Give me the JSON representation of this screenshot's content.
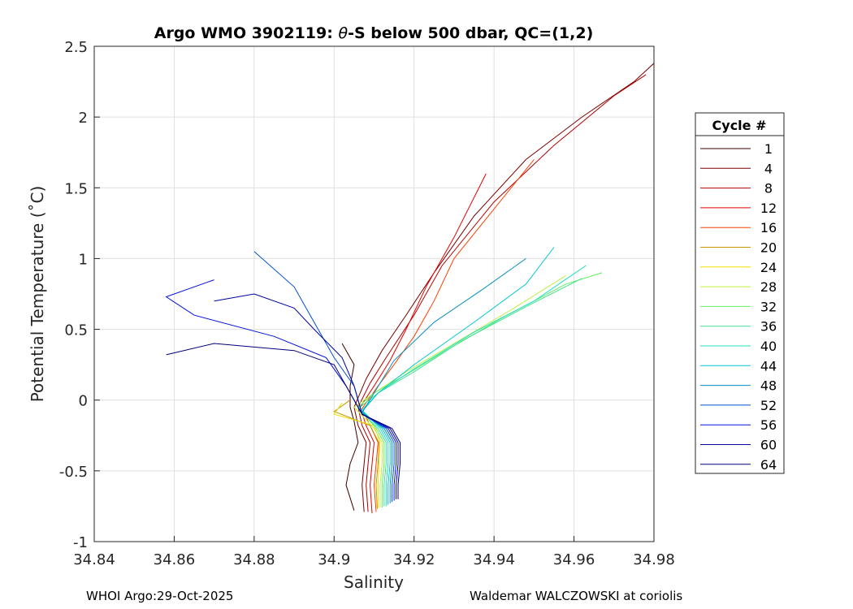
{
  "chart_data": {
    "type": "line",
    "title": "Argo WMO 3902119: θ-S below 500 dbar,  QC=(1,2)",
    "title_parts": {
      "prefix": "Argo WMO 3902119: ",
      "symbol": "θ",
      "suffix": "-S below 500 dbar,  QC=(1,2)"
    },
    "xlabel": "Salinity",
    "ylabel": "Potential Temperature (˚C)",
    "xlim": [
      34.84,
      34.98
    ],
    "ylim": [
      -1,
      2.5
    ],
    "xticks": [
      34.84,
      34.86,
      34.88,
      34.9,
      34.92,
      34.94,
      34.96,
      34.98
    ],
    "xtick_labels": [
      "34.84",
      "34.86",
      "34.88",
      "34.9",
      "34.92",
      "34.94",
      "34.96",
      "34.98"
    ],
    "yticks": [
      -1,
      -0.5,
      0,
      0.5,
      1,
      1.5,
      2,
      2.5
    ],
    "ytick_labels": [
      "-1",
      "-0.5",
      "0",
      "0.5",
      "1",
      "1.5",
      "2",
      "2.5"
    ],
    "grid": true,
    "legend": {
      "title": "Cycle #",
      "placement": "outside-right",
      "entries": [
        "1",
        "4",
        "8",
        "12",
        "16",
        "20",
        "24",
        "28",
        "32",
        "36",
        "40",
        "44",
        "48",
        "52",
        "56",
        "60",
        "64"
      ],
      "colors": [
        "#3a0000",
        "#7a0000",
        "#b30000",
        "#e80000",
        "#ff4000",
        "#c89600",
        "#f0e000",
        "#c0f040",
        "#60f060",
        "#40e090",
        "#20e0c0",
        "#00c8d0",
        "#0090c0",
        "#0050d0",
        "#0010e0",
        "#0000a0",
        "#000078"
      ]
    },
    "series": [
      {
        "name": "1",
        "color": "#3a0000",
        "points": [
          [
            34.905,
            -0.78
          ],
          [
            34.903,
            -0.6
          ],
          [
            34.904,
            -0.45
          ],
          [
            34.906,
            -0.3
          ],
          [
            34.905,
            -0.15
          ],
          [
            34.904,
            -0.05
          ],
          [
            34.904,
            0.1
          ],
          [
            34.905,
            0.25
          ],
          [
            34.902,
            0.4
          ]
        ]
      },
      {
        "name": "4",
        "color": "#7a0000",
        "points": [
          [
            34.9075,
            -0.79
          ],
          [
            34.907,
            -0.6
          ],
          [
            34.9075,
            -0.45
          ],
          [
            34.908,
            -0.3
          ],
          [
            34.906,
            -0.18
          ],
          [
            34.905,
            -0.05
          ],
          [
            34.908,
            0.15
          ],
          [
            34.912,
            0.35
          ],
          [
            34.918,
            0.6
          ],
          [
            34.925,
            0.9
          ],
          [
            34.935,
            1.3
          ],
          [
            34.948,
            1.7
          ],
          [
            34.962,
            2.0
          ],
          [
            34.975,
            2.25
          ],
          [
            34.98,
            2.38
          ]
        ]
      },
      {
        "name": "8",
        "color": "#b30000",
        "points": [
          [
            34.9085,
            -0.79
          ],
          [
            34.908,
            -0.6
          ],
          [
            34.9085,
            -0.45
          ],
          [
            34.909,
            -0.3
          ],
          [
            34.907,
            -0.18
          ],
          [
            34.906,
            -0.05
          ],
          [
            34.909,
            0.12
          ],
          [
            34.913,
            0.3
          ],
          [
            34.92,
            0.6
          ],
          [
            34.927,
            0.95
          ],
          [
            34.94,
            1.4
          ],
          [
            34.955,
            1.8
          ],
          [
            34.97,
            2.15
          ],
          [
            34.978,
            2.3
          ]
        ]
      },
      {
        "name": "12",
        "color": "#e80000",
        "points": [
          [
            34.9095,
            -0.8
          ],
          [
            34.909,
            -0.6
          ],
          [
            34.9095,
            -0.45
          ],
          [
            34.91,
            -0.3
          ],
          [
            34.908,
            -0.18
          ],
          [
            34.9065,
            -0.05
          ],
          [
            34.91,
            0.1
          ],
          [
            34.914,
            0.28
          ],
          [
            34.918,
            0.5
          ],
          [
            34.923,
            0.8
          ],
          [
            34.93,
            1.15
          ],
          [
            34.938,
            1.6
          ]
        ]
      },
      {
        "name": "16",
        "color": "#ff4000",
        "points": [
          [
            34.9105,
            -0.79
          ],
          [
            34.91,
            -0.6
          ],
          [
            34.9105,
            -0.45
          ],
          [
            34.911,
            -0.3
          ],
          [
            34.909,
            -0.18
          ],
          [
            34.907,
            -0.06
          ],
          [
            34.911,
            0.1
          ],
          [
            34.915,
            0.25
          ],
          [
            34.92,
            0.45
          ],
          [
            34.925,
            0.7
          ],
          [
            34.93,
            1.0
          ],
          [
            34.94,
            1.35
          ],
          [
            34.95,
            1.7
          ]
        ]
      },
      {
        "name": "20",
        "color": "#c89600",
        "points": [
          [
            34.9108,
            -0.77
          ],
          [
            34.9105,
            -0.6
          ],
          [
            34.911,
            -0.45
          ],
          [
            34.9112,
            -0.3
          ],
          [
            34.909,
            -0.18
          ],
          [
            34.9,
            -0.08
          ],
          [
            34.904,
            0.0
          ]
        ]
      },
      {
        "name": "24",
        "color": "#f0e000",
        "points": [
          [
            34.911,
            -0.76
          ],
          [
            34.911,
            -0.6
          ],
          [
            34.9112,
            -0.45
          ],
          [
            34.9115,
            -0.3
          ],
          [
            34.91,
            -0.18
          ],
          [
            34.9,
            -0.1
          ],
          [
            34.902,
            -0.02
          ]
        ]
      },
      {
        "name": "28",
        "color": "#c0f040",
        "points": [
          [
            34.9115,
            -0.76
          ],
          [
            34.9115,
            -0.6
          ],
          [
            34.912,
            -0.45
          ],
          [
            34.912,
            -0.3
          ],
          [
            34.91,
            -0.2
          ],
          [
            34.905,
            -0.05
          ],
          [
            34.91,
            0.05
          ],
          [
            34.918,
            0.2
          ],
          [
            34.93,
            0.4
          ],
          [
            34.945,
            0.65
          ],
          [
            34.958,
            0.88
          ]
        ]
      },
      {
        "name": "32",
        "color": "#60f060",
        "points": [
          [
            34.912,
            -0.76
          ],
          [
            34.912,
            -0.6
          ],
          [
            34.9125,
            -0.45
          ],
          [
            34.9125,
            -0.3
          ],
          [
            34.9105,
            -0.2
          ],
          [
            34.906,
            -0.05
          ],
          [
            34.91,
            0.05
          ],
          [
            34.918,
            0.18
          ],
          [
            34.928,
            0.35
          ],
          [
            34.942,
            0.58
          ],
          [
            34.958,
            0.82
          ],
          [
            34.967,
            0.9
          ]
        ]
      },
      {
        "name": "36",
        "color": "#40e090",
        "points": [
          [
            34.9125,
            -0.75
          ],
          [
            34.9125,
            -0.6
          ],
          [
            34.913,
            -0.45
          ],
          [
            34.913,
            -0.3
          ],
          [
            34.911,
            -0.2
          ],
          [
            34.906,
            -0.06
          ],
          [
            34.911,
            0.05
          ],
          [
            34.92,
            0.2
          ],
          [
            34.932,
            0.42
          ],
          [
            34.948,
            0.66
          ],
          [
            34.962,
            0.86
          ]
        ]
      },
      {
        "name": "40",
        "color": "#20e0c0",
        "points": [
          [
            34.913,
            -0.75
          ],
          [
            34.913,
            -0.6
          ],
          [
            34.9135,
            -0.45
          ],
          [
            34.9135,
            -0.3
          ],
          [
            34.9115,
            -0.2
          ],
          [
            34.907,
            -0.07
          ],
          [
            34.911,
            0.05
          ],
          [
            34.92,
            0.22
          ],
          [
            34.935,
            0.48
          ],
          [
            34.95,
            0.7
          ],
          [
            34.963,
            0.95
          ]
        ]
      },
      {
        "name": "44",
        "color": "#00c8d0",
        "points": [
          [
            34.9135,
            -0.74
          ],
          [
            34.9135,
            -0.6
          ],
          [
            34.914,
            -0.45
          ],
          [
            34.914,
            -0.3
          ],
          [
            34.912,
            -0.2
          ],
          [
            34.907,
            -0.08
          ],
          [
            34.911,
            0.05
          ],
          [
            34.92,
            0.25
          ],
          [
            34.935,
            0.55
          ],
          [
            34.948,
            0.82
          ],
          [
            34.955,
            1.08
          ]
        ]
      },
      {
        "name": "48",
        "color": "#0090c0",
        "points": [
          [
            34.914,
            -0.73
          ],
          [
            34.914,
            -0.6
          ],
          [
            34.9145,
            -0.45
          ],
          [
            34.9145,
            -0.3
          ],
          [
            34.9125,
            -0.2
          ],
          [
            34.907,
            -0.09
          ],
          [
            34.91,
            0.05
          ],
          [
            34.915,
            0.28
          ],
          [
            34.925,
            0.55
          ],
          [
            34.937,
            0.78
          ],
          [
            34.948,
            1.0
          ]
        ]
      },
      {
        "name": "52",
        "color": "#0050d0",
        "points": [
          [
            34.9145,
            -0.72
          ],
          [
            34.9145,
            -0.6
          ],
          [
            34.915,
            -0.45
          ],
          [
            34.915,
            -0.3
          ],
          [
            34.913,
            -0.2
          ],
          [
            34.907,
            -0.1
          ],
          [
            34.905,
            0.1
          ],
          [
            34.9,
            0.3
          ],
          [
            34.895,
            0.55
          ],
          [
            34.89,
            0.8
          ],
          [
            34.88,
            1.05
          ]
        ]
      },
      {
        "name": "56",
        "color": "#0010e0",
        "points": [
          [
            34.915,
            -0.71
          ],
          [
            34.915,
            -0.6
          ],
          [
            34.9155,
            -0.45
          ],
          [
            34.9155,
            -0.3
          ],
          [
            34.9135,
            -0.2
          ],
          [
            34.907,
            -0.1
          ],
          [
            34.903,
            0.1
          ],
          [
            34.898,
            0.3
          ],
          [
            34.885,
            0.45
          ],
          [
            34.865,
            0.6
          ],
          [
            34.858,
            0.73
          ],
          [
            34.87,
            0.85
          ]
        ]
      },
      {
        "name": "60",
        "color": "#0000a0",
        "points": [
          [
            34.9155,
            -0.7
          ],
          [
            34.9155,
            -0.6
          ],
          [
            34.916,
            -0.45
          ],
          [
            34.916,
            -0.3
          ],
          [
            34.914,
            -0.2
          ],
          [
            34.907,
            -0.1
          ],
          [
            34.905,
            0.1
          ],
          [
            34.902,
            0.3
          ],
          [
            34.895,
            0.5
          ],
          [
            34.89,
            0.65
          ],
          [
            34.88,
            0.75
          ],
          [
            34.87,
            0.7
          ]
        ]
      },
      {
        "name": "64",
        "color": "#000078",
        "points": [
          [
            34.916,
            -0.7
          ],
          [
            34.916,
            -0.6
          ],
          [
            34.9165,
            -0.45
          ],
          [
            34.9165,
            -0.3
          ],
          [
            34.9145,
            -0.2
          ],
          [
            34.907,
            -0.1
          ],
          [
            34.903,
            0.1
          ],
          [
            34.9,
            0.25
          ],
          [
            34.89,
            0.35
          ],
          [
            34.87,
            0.4
          ],
          [
            34.858,
            0.32
          ]
        ]
      }
    ]
  },
  "footer": {
    "left": "WHOI Argo:29-Oct-2025",
    "right": "Waldemar WALCZOWSKI at coriolis"
  }
}
